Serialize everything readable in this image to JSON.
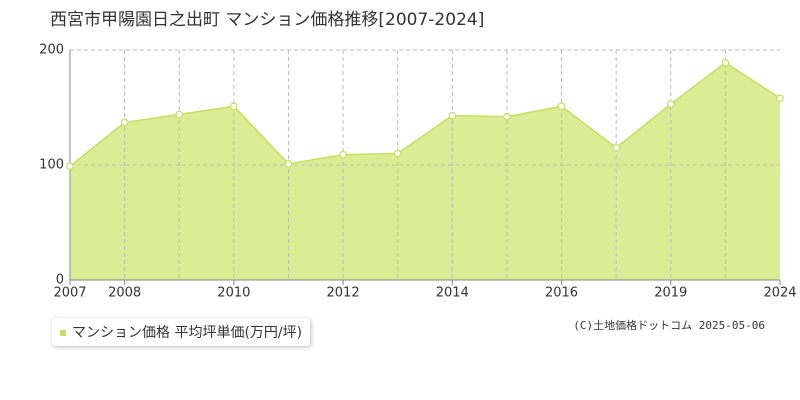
{
  "chart_data": {
    "type": "area",
    "title": "西宮市甲陽園日之出町 マンション価格推移[2007-2024]",
    "categories": [
      "2007",
      "2008",
      null,
      "2010",
      null,
      "2012",
      null,
      "2014",
      null,
      "2016",
      null,
      "2019",
      null,
      "2024"
    ],
    "series": [
      {
        "name": "マンション価格 平均坪単価(万円/坪)",
        "color": "#c5df5f",
        "fill": "#dcec94",
        "values": [
          99,
          137,
          144,
          151,
          101,
          109,
          110,
          143,
          142,
          151,
          115,
          153,
          189,
          158
        ]
      }
    ],
    "ylim": [
      0,
      200
    ],
    "yticks": [
      0,
      100,
      200
    ],
    "grid": true,
    "source": "(C)土地価格ドットコム 2025-05-06"
  }
}
